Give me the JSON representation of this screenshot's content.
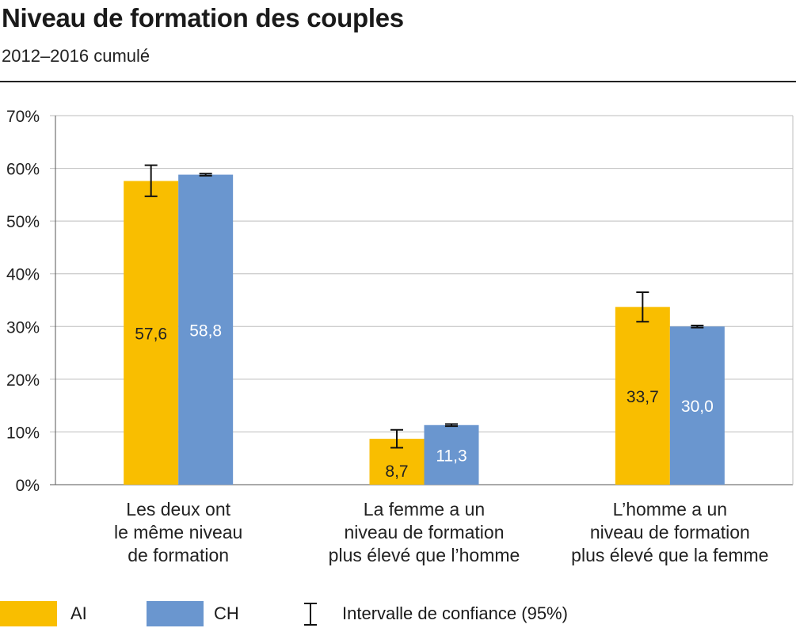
{
  "header": {
    "title": "Niveau de formation des couples",
    "subtitle": "2012–2016 cumulé"
  },
  "legend": {
    "ai_label": "AI",
    "ch_label": "CH",
    "ci_label": "Intervalle de confiance (95%)"
  },
  "colors": {
    "ai": "#F9BE00",
    "ch": "#6A96CF",
    "grid": "#BDBDBD",
    "axis": "#555555"
  },
  "chart_data": {
    "type": "bar",
    "title": "Niveau de formation des couples",
    "subtitle": "2012–2016 cumulé",
    "categories": [
      [
        "Les deux ont",
        "le même niveau",
        "de formation"
      ],
      [
        "La femme a un",
        "niveau de formation",
        "plus élevé que l’homme"
      ],
      [
        "L’homme a un",
        "niveau de formation",
        "plus élevé que la femme"
      ]
    ],
    "series": [
      {
        "name": "AI",
        "values": [
          57.6,
          8.7,
          33.7
        ],
        "labels": [
          "57,6",
          "8,7",
          "33,7"
        ],
        "ci": [
          [
            54.7,
            60.6
          ],
          [
            7.0,
            10.4
          ],
          [
            30.9,
            36.5
          ]
        ]
      },
      {
        "name": "CH",
        "values": [
          58.8,
          11.3,
          30.0
        ],
        "labels": [
          "58,8",
          "11,3",
          "30,0"
        ],
        "ci": [
          [
            58.6,
            59.0
          ],
          [
            11.1,
            11.5
          ],
          [
            29.8,
            30.2
          ]
        ]
      }
    ],
    "yticks": [
      "0%",
      "10%",
      "20%",
      "30%",
      "40%",
      "50%",
      "60%",
      "70%"
    ],
    "ylim": [
      0,
      70
    ],
    "grid": true,
    "legend_position": "bottom",
    "error_bars": "Intervalle de confiance (95%)"
  }
}
